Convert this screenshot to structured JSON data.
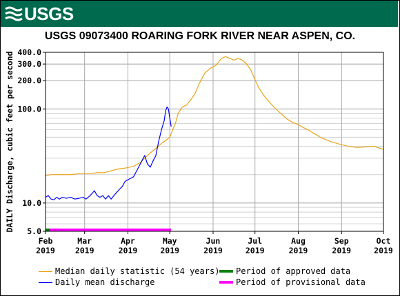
{
  "header": {
    "logo_text": "USGS"
  },
  "chart_data": {
    "type": "line",
    "title": "USGS 09073400 ROARING FORK RIVER NEAR ASPEN, CO.",
    "ylabel": "DAILY Discharge, cubic feet per second",
    "xlabel": "",
    "yscale": "log",
    "ylim": [
      5,
      400
    ],
    "y_ticks": [
      {
        "value": 5,
        "label": "5.0"
      },
      {
        "value": 10,
        "label": "10.0"
      },
      {
        "value": 100,
        "label": "100.0"
      },
      {
        "value": 200,
        "label": "200.0"
      },
      {
        "value": 300,
        "label": "300.0"
      },
      {
        "value": 400,
        "label": "400.0"
      }
    ],
    "y_minor_grid": [
      6,
      7,
      8,
      9,
      20,
      30,
      40,
      50,
      60,
      70,
      80,
      90
    ],
    "xlim": [
      "2019-02-01",
      "2019-10-01"
    ],
    "x_ticks": [
      {
        "date": "2019-02-01",
        "month": "Feb",
        "year": "2019"
      },
      {
        "date": "2019-03-01",
        "month": "Mar",
        "year": "2019"
      },
      {
        "date": "2019-04-01",
        "month": "Apr",
        "year": "2019"
      },
      {
        "date": "2019-05-01",
        "month": "May",
        "year": "2019"
      },
      {
        "date": "2019-06-01",
        "month": "Jun",
        "year": "2019"
      },
      {
        "date": "2019-07-01",
        "month": "Jul",
        "year": "2019"
      },
      {
        "date": "2019-08-01",
        "month": "Aug",
        "year": "2019"
      },
      {
        "date": "2019-09-01",
        "month": "Sep",
        "year": "2019"
      },
      {
        "date": "2019-10-01",
        "month": "Oct",
        "year": "2019"
      }
    ],
    "grid": true,
    "legend_position": "bottom",
    "series": [
      {
        "name": "Median daily statistic (54 years)",
        "color": "#e8a317",
        "points": [
          [
            "2019-02-01",
            19.5
          ],
          [
            "2019-02-05",
            20
          ],
          [
            "2019-02-10",
            20
          ],
          [
            "2019-02-15",
            20
          ],
          [
            "2019-02-20",
            20
          ],
          [
            "2019-02-25",
            20.5
          ],
          [
            "2019-03-01",
            20.5
          ],
          [
            "2019-03-05",
            20.5
          ],
          [
            "2019-03-10",
            21
          ],
          [
            "2019-03-15",
            21
          ],
          [
            "2019-03-20",
            22
          ],
          [
            "2019-03-25",
            23
          ],
          [
            "2019-03-30",
            23.5
          ],
          [
            "2019-04-05",
            24.5
          ],
          [
            "2019-04-10",
            27
          ],
          [
            "2019-04-14",
            31
          ],
          [
            "2019-04-18",
            35
          ],
          [
            "2019-04-22",
            39
          ],
          [
            "2019-04-25",
            43
          ],
          [
            "2019-04-28",
            46
          ],
          [
            "2019-05-01",
            50
          ],
          [
            "2019-05-03",
            60
          ],
          [
            "2019-05-05",
            70
          ],
          [
            "2019-05-07",
            90
          ],
          [
            "2019-05-10",
            105
          ],
          [
            "2019-05-13",
            110
          ],
          [
            "2019-05-16",
            125
          ],
          [
            "2019-05-19",
            145
          ],
          [
            "2019-05-22",
            185
          ],
          [
            "2019-05-26",
            240
          ],
          [
            "2019-05-30",
            270
          ],
          [
            "2019-06-03",
            290
          ],
          [
            "2019-06-07",
            345
          ],
          [
            "2019-06-10",
            360
          ],
          [
            "2019-06-13",
            345
          ],
          [
            "2019-06-16",
            330
          ],
          [
            "2019-06-19",
            345
          ],
          [
            "2019-06-22",
            330
          ],
          [
            "2019-06-25",
            300
          ],
          [
            "2019-06-28",
            260
          ],
          [
            "2019-07-01",
            205
          ],
          [
            "2019-07-04",
            165
          ],
          [
            "2019-07-08",
            135
          ],
          [
            "2019-07-12",
            115
          ],
          [
            "2019-07-16",
            100
          ],
          [
            "2019-07-20",
            88
          ],
          [
            "2019-07-24",
            78
          ],
          [
            "2019-07-28",
            72
          ],
          [
            "2019-08-01",
            68
          ],
          [
            "2019-08-05",
            63
          ],
          [
            "2019-08-08",
            60
          ],
          [
            "2019-08-12",
            55
          ],
          [
            "2019-08-18",
            49
          ],
          [
            "2019-08-24",
            45
          ],
          [
            "2019-08-31",
            42
          ],
          [
            "2019-09-06",
            40
          ],
          [
            "2019-09-12",
            39
          ],
          [
            "2019-09-18",
            39.5
          ],
          [
            "2019-09-24",
            40
          ],
          [
            "2019-09-29",
            38
          ],
          [
            "2019-10-01",
            37
          ]
        ]
      },
      {
        "name": "Daily mean discharge",
        "color": "#0000ff",
        "points": [
          [
            "2019-02-01",
            11.5
          ],
          [
            "2019-02-03",
            12
          ],
          [
            "2019-02-05",
            11
          ],
          [
            "2019-02-07",
            10.8
          ],
          [
            "2019-02-09",
            11.5
          ],
          [
            "2019-02-11",
            11
          ],
          [
            "2019-02-13",
            11.5
          ],
          [
            "2019-02-16",
            11.2
          ],
          [
            "2019-02-19",
            11.5
          ],
          [
            "2019-02-22",
            11
          ],
          [
            "2019-02-25",
            11.2
          ],
          [
            "2019-02-28",
            11.5
          ],
          [
            "2019-03-02",
            11
          ],
          [
            "2019-03-05",
            12
          ],
          [
            "2019-03-08",
            13.5
          ],
          [
            "2019-03-10",
            12
          ],
          [
            "2019-03-12",
            11.5
          ],
          [
            "2019-03-14",
            12
          ],
          [
            "2019-03-16",
            11
          ],
          [
            "2019-03-18",
            12
          ],
          [
            "2019-03-20",
            11
          ],
          [
            "2019-03-22",
            12
          ],
          [
            "2019-03-24",
            13
          ],
          [
            "2019-03-26",
            14
          ],
          [
            "2019-03-28",
            15
          ],
          [
            "2019-03-30",
            17
          ],
          [
            "2019-04-02",
            18
          ],
          [
            "2019-04-05",
            19
          ],
          [
            "2019-04-08",
            23
          ],
          [
            "2019-04-11",
            28
          ],
          [
            "2019-04-13",
            32
          ],
          [
            "2019-04-15",
            26
          ],
          [
            "2019-04-17",
            24
          ],
          [
            "2019-04-19",
            28
          ],
          [
            "2019-04-21",
            32
          ],
          [
            "2019-04-23",
            45
          ],
          [
            "2019-04-25",
            60
          ],
          [
            "2019-04-27",
            75
          ],
          [
            "2019-04-28",
            95
          ],
          [
            "2019-04-29",
            105
          ],
          [
            "2019-04-30",
            100
          ],
          [
            "2019-05-01",
            80
          ],
          [
            "2019-05-02",
            65
          ]
        ]
      }
    ],
    "periods": [
      {
        "name": "Period of approved data",
        "color": "#008000",
        "start": "2019-02-01",
        "end": "2019-02-04"
      },
      {
        "name": "Period of provisional data",
        "color": "#ff00ff",
        "start": "2019-02-04",
        "end": "2019-05-02"
      }
    ]
  }
}
